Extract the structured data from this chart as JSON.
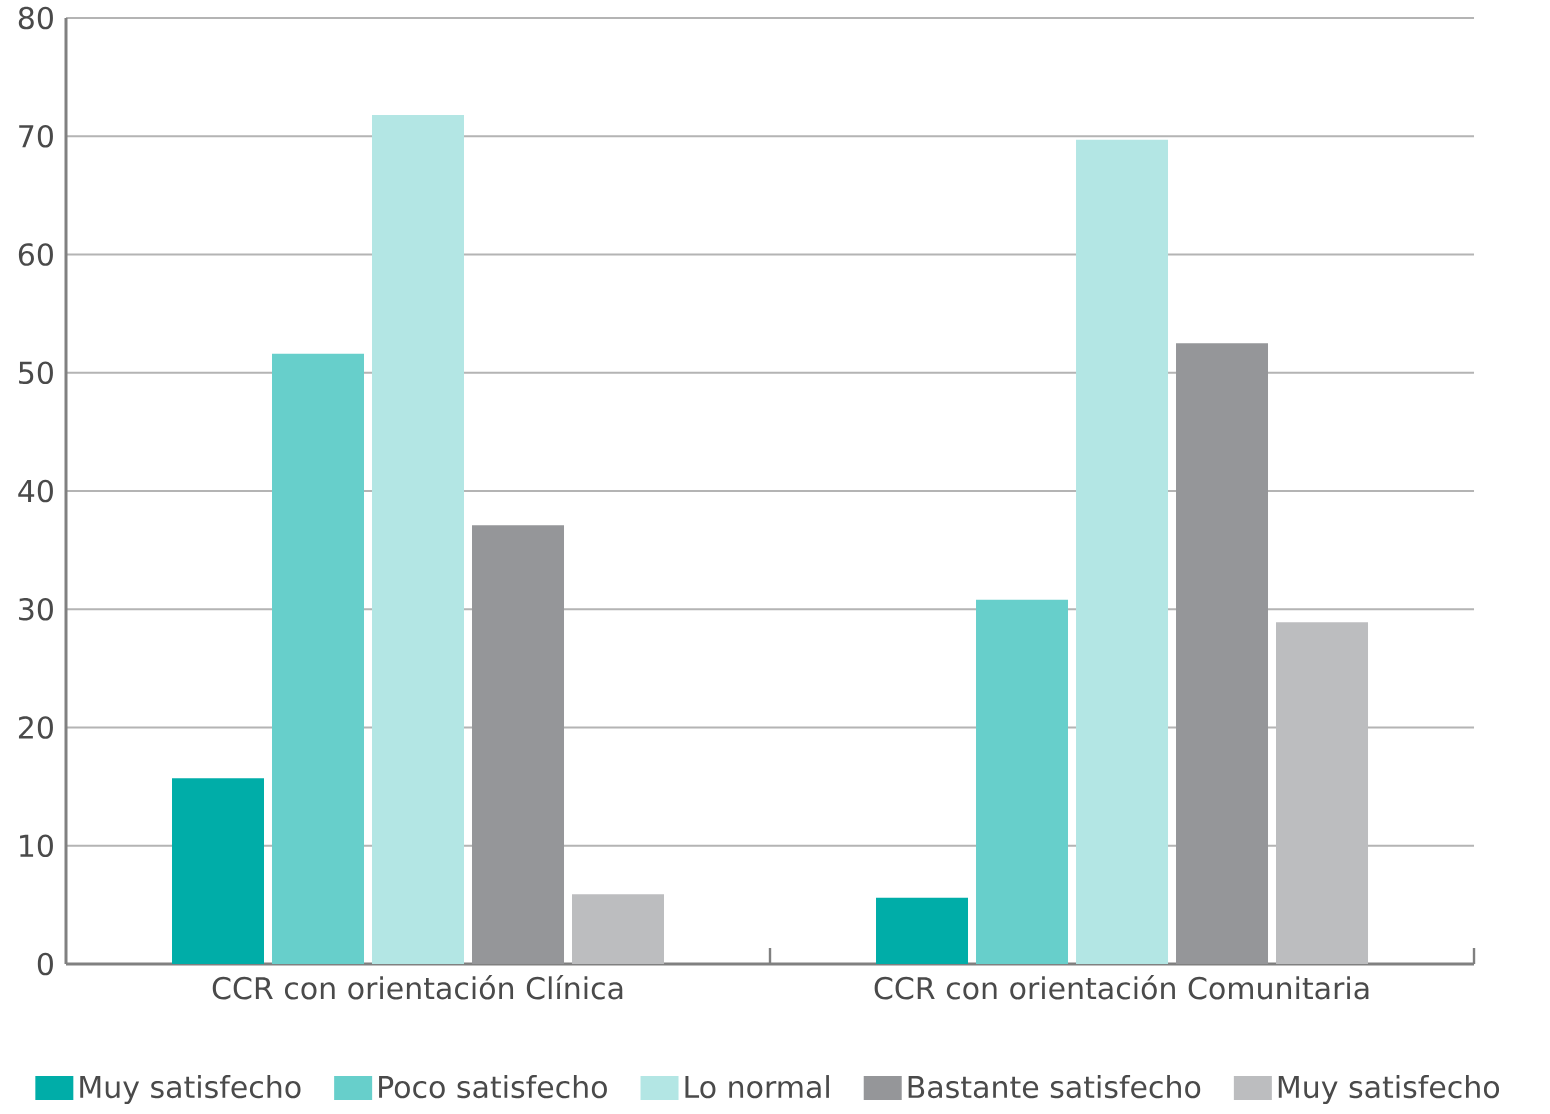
{
  "chart_data": {
    "type": "bar",
    "categories": [
      "CCR con orientación Clínica",
      "CCR con orientación Comunitaria"
    ],
    "series": [
      {
        "name": "Muy satisfecho",
        "color": "#00ada8",
        "values": [
          15.7,
          5.6
        ]
      },
      {
        "name": "Poco satisfecho",
        "color": "#67cfcb",
        "values": [
          51.6,
          30.8
        ]
      },
      {
        "name": "Lo normal",
        "color": "#b3e6e4",
        "values": [
          71.8,
          69.7
        ]
      },
      {
        "name": "Bastante satisfecho",
        "color": "#959699",
        "values": [
          37.1,
          52.5
        ]
      },
      {
        "name": "Muy satisfecho",
        "color": "#bcbdbf",
        "values": [
          5.9,
          28.9
        ]
      }
    ],
    "ylim": [
      0,
      80
    ],
    "yticks": [
      0,
      10,
      20,
      30,
      40,
      50,
      60,
      70,
      80
    ],
    "grid": "y",
    "legend": "bottom"
  }
}
